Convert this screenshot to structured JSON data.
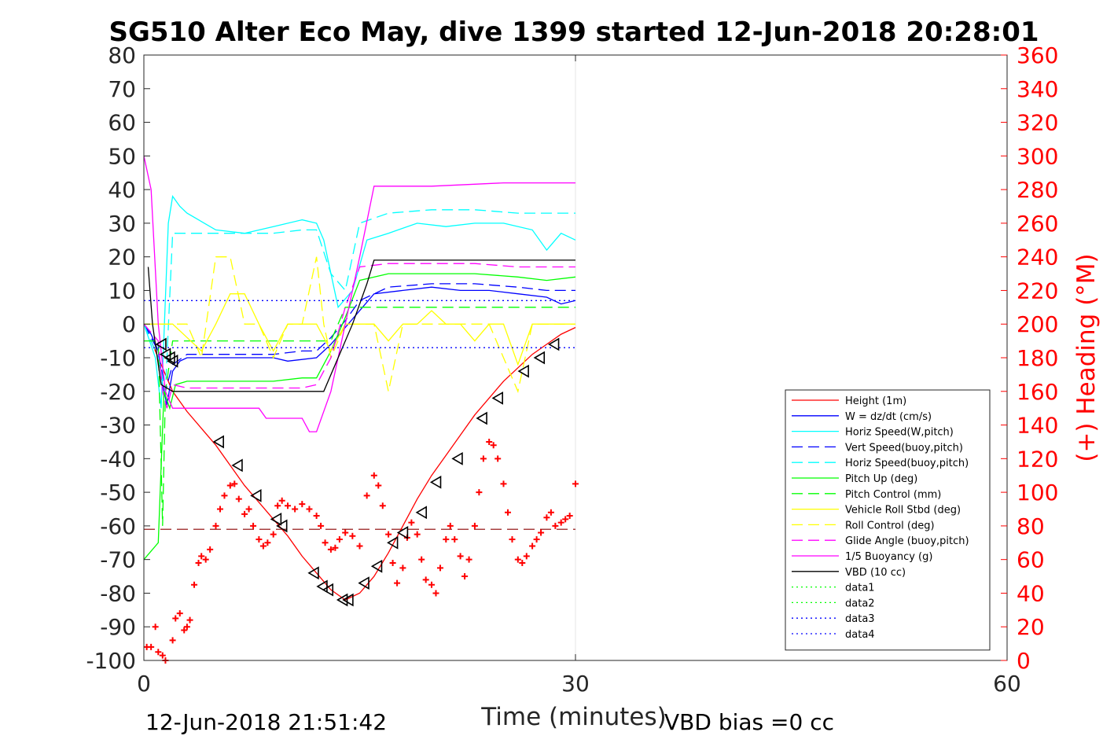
{
  "chart_data": {
    "type": "line",
    "title": "SG510 Alter Eco May, dive 1399 started 12-Jun-2018 20:28:01",
    "xlabel": "Time (minutes)",
    "ylabel": "",
    "ylabel_right": "(+) Heading (°M)",
    "xlim": [
      0,
      60
    ],
    "ylim": [
      -100,
      80
    ],
    "ylim_right": [
      0,
      360
    ],
    "x_ticks": [
      "0",
      "30",
      "60"
    ],
    "y_ticks": [
      "80",
      "70",
      "60",
      "50",
      "40",
      "30",
      "20",
      "10",
      "0",
      "-10",
      "-20",
      "-30",
      "-40",
      "-50",
      "-60",
      "-70",
      "-80",
      "-90",
      "-100"
    ],
    "y_ticks_right": [
      "360",
      "340",
      "320",
      "300",
      "280",
      "260",
      "240",
      "220",
      "200",
      "180",
      "160",
      "140",
      "120",
      "100",
      "80",
      "60",
      "40",
      "20",
      "0"
    ],
    "grid": "vertical lines at x ticks",
    "legend_position": "lower-right",
    "footer_left": "12-Jun-2018 21:51:42",
    "footer_right": "VBD bias =0 cc",
    "series": [
      {
        "name": "Height (1m)",
        "color": "#ff0000",
        "style": "solid",
        "x": [
          0.5,
          1,
          2,
          3,
          4,
          5,
          6,
          7,
          8,
          9,
          10,
          11,
          12,
          13,
          14,
          15,
          16,
          17,
          18,
          19,
          20,
          21,
          22,
          23,
          24,
          25,
          26,
          27,
          28,
          29,
          30
        ],
        "y": [
          -5,
          -10,
          -20,
          -26,
          -31,
          -36,
          -42,
          -48,
          -53,
          -58,
          -63,
          -69,
          -74,
          -79,
          -82,
          -80,
          -75,
          -68,
          -60,
          -52,
          -45,
          -39,
          -33,
          -27,
          -22,
          -17,
          -13,
          -9,
          -6,
          -3,
          -1
        ]
      },
      {
        "name": "W = dz/dt (cm/s)",
        "color": "#0000ff",
        "style": "solid",
        "x": [
          0,
          0.5,
          1,
          1.3,
          1.6,
          2,
          2.5,
          3,
          5,
          7,
          9,
          10,
          12,
          13,
          14,
          15,
          16,
          18,
          20,
          22,
          24,
          26,
          28,
          29,
          30
        ],
        "y": [
          0,
          -3,
          -8,
          -18,
          -24,
          -14,
          -11,
          -10,
          -10,
          -10,
          -10,
          -11,
          -10,
          -6,
          -1,
          4,
          9,
          10,
          11,
          10,
          10,
          9,
          8,
          6,
          7
        ]
      },
      {
        "name": "Horiz Speed(W,pitch)",
        "color": "#00ffff",
        "style": "solid",
        "x": [
          0,
          0.8,
          1.2,
          1.7,
          2,
          2.5,
          3,
          5,
          7,
          9,
          11,
          12,
          12.5,
          13.5,
          14.5,
          15.5,
          17,
          19,
          21,
          23,
          25,
          27,
          28,
          29,
          30
        ],
        "y": [
          0,
          -10,
          -25,
          30,
          38,
          35,
          33,
          28,
          27,
          29,
          31,
          30,
          25,
          5,
          10,
          25,
          27,
          30,
          29,
          30,
          30,
          28,
          22,
          27,
          25
        ]
      },
      {
        "name": "Vert Speed(buoy,pitch)",
        "color": "#0000ff",
        "style": "dash",
        "x": [
          0,
          1,
          1.5,
          2,
          3,
          5,
          7,
          9,
          11,
          12,
          13,
          14,
          15,
          17,
          20,
          23,
          26,
          28,
          30
        ],
        "y": [
          0,
          -8,
          -20,
          -12,
          -9,
          -9,
          -9,
          -9,
          -8,
          -8,
          -4,
          1,
          7,
          11,
          12,
          12,
          11,
          10,
          10
        ]
      },
      {
        "name": "Horiz Speed(buoy,pitch)",
        "color": "#00ffff",
        "style": "dash",
        "x": [
          0,
          1,
          1.5,
          2,
          3,
          5,
          7,
          9,
          11,
          12,
          13,
          14,
          15,
          17,
          20,
          23,
          26,
          28,
          30
        ],
        "y": [
          0,
          -10,
          -20,
          27,
          27,
          27,
          27,
          27,
          28,
          28,
          15,
          10,
          30,
          33,
          34,
          34,
          33,
          33,
          33
        ]
      },
      {
        "name": "Pitch Up (deg)",
        "color": "#00ff00",
        "style": "solid",
        "x": [
          0,
          1,
          1.4,
          1.8,
          2.2,
          3,
          5,
          7,
          9,
          11,
          12,
          13,
          14,
          15,
          17,
          20,
          23,
          26,
          28,
          30
        ],
        "y": [
          -70,
          -65,
          -20,
          -25,
          -18,
          -17,
          -17,
          -17,
          -17,
          -16,
          -16,
          -8,
          2,
          13,
          15,
          15,
          15,
          14,
          13,
          14
        ]
      },
      {
        "name": "Pitch Control (mm)",
        "color": "#00ff00",
        "style": "dash",
        "x": [
          0,
          1,
          1.3,
          1.5,
          2,
          5,
          9,
          12,
          13,
          14,
          15,
          20,
          25,
          30
        ],
        "y": [
          -5,
          -5,
          -60,
          -20,
          -5,
          -5,
          -5,
          -5,
          -5,
          5,
          5,
          5,
          5,
          5
        ]
      },
      {
        "name": "Vehicle Roll Stbd (deg)",
        "color": "#ffff00",
        "style": "solid",
        "x": [
          0,
          2,
          4,
          5,
          6,
          7,
          8,
          9,
          10,
          11,
          12,
          13,
          14,
          15,
          16,
          17,
          18,
          19,
          20,
          21,
          22,
          23,
          24,
          25,
          26,
          27,
          28,
          29,
          30
        ],
        "y": [
          0,
          0,
          -8,
          0,
          9,
          9,
          0,
          -8,
          0,
          0,
          0,
          -8,
          0,
          0,
          0,
          -5,
          0,
          0,
          4,
          0,
          0,
          -5,
          0,
          0,
          -12,
          0,
          0,
          0,
          0
        ]
      },
      {
        "name": "Roll Control (deg)",
        "color": "#ffff00",
        "style": "dash",
        "x": [
          0,
          3,
          4,
          5,
          6,
          7,
          8,
          9,
          10,
          11,
          12,
          12.5,
          13,
          14,
          16,
          17,
          18,
          20,
          22,
          24,
          25,
          26,
          27,
          28,
          29,
          30
        ],
        "y": [
          0,
          0,
          -10,
          20,
          20,
          0,
          0,
          -10,
          0,
          0,
          20,
          0,
          -10,
          0,
          0,
          -20,
          0,
          0,
          0,
          0,
          -10,
          -20,
          0,
          0,
          0,
          0
        ]
      },
      {
        "name": "Glide Angle (buoy,pitch)",
        "color": "#ff00ff",
        "style": "dash",
        "x": [
          0,
          1,
          1.3,
          1.6,
          2,
          3,
          5,
          7,
          9,
          11,
          12,
          13,
          14,
          15,
          17,
          20,
          23,
          26,
          28,
          30
        ],
        "y": [
          0,
          -5,
          -20,
          -25,
          -18,
          -19,
          -19,
          -19,
          -19,
          -19,
          -18,
          -10,
          5,
          17,
          18,
          18,
          18,
          17,
          17,
          17
        ]
      },
      {
        "name": "1/5 Buoyancy (g)",
        "color": "#ff00ff",
        "style": "solid",
        "x": [
          0,
          0.5,
          1,
          1.5,
          2,
          5,
          8,
          8.5,
          11,
          11.5,
          12,
          13,
          14,
          15,
          16,
          20,
          25,
          30
        ],
        "y": [
          50,
          40,
          0,
          -20,
          -25,
          -25,
          -25,
          -28,
          -28,
          -32,
          -32,
          -20,
          0,
          20,
          41,
          41,
          42,
          42
        ]
      },
      {
        "name": "VBD (10 cc)",
        "color": "#000000",
        "style": "solid",
        "x": [
          0.3,
          0.6,
          1.2,
          2,
          5,
          8,
          12,
          12.5,
          13.5,
          14.5,
          15.5,
          16,
          20,
          25,
          30
        ],
        "y": [
          17,
          0,
          -18,
          -20,
          -20,
          -20,
          -20,
          -20,
          -10,
          0,
          12,
          19,
          19,
          19,
          19
        ]
      },
      {
        "name": "data1",
        "color": "#00ff00",
        "style": "dot",
        "x": [],
        "y": []
      },
      {
        "name": "data2",
        "color": "#00ff00",
        "style": "dot",
        "x": [],
        "y": []
      },
      {
        "name": "data3",
        "color": "#0000ff",
        "style": "dot",
        "x": [
          0,
          30
        ],
        "y": [
          7,
          7
        ]
      },
      {
        "name": "data4",
        "color": "#0000ff",
        "style": "dot",
        "x": [
          0,
          30
        ],
        "y": [
          -7,
          -7
        ]
      }
    ],
    "reference_lines": [
      {
        "color": "#8b0000",
        "style": "dash",
        "x": [
          0,
          30
        ],
        "y": [
          -61,
          -61
        ]
      }
    ],
    "heading_points": {
      "color": "#ff0000",
      "marker": "+",
      "x": [
        0.2,
        0.5,
        0.8,
        1.0,
        1.3,
        1.5,
        2.0,
        2.2,
        2.5,
        2.8,
        3.0,
        3.2,
        3.5,
        3.8,
        4.0,
        4.3,
        4.6,
        5.0,
        5.3,
        5.6,
        6.0,
        6.3,
        6.6,
        7.0,
        7.3,
        7.6,
        8.0,
        8.3,
        8.6,
        9.0,
        9.3,
        9.6,
        10.0,
        10.5,
        11.0,
        11.5,
        12.0,
        12.3,
        12.6,
        13.0,
        13.3,
        13.6,
        14.0,
        14.5,
        15.0,
        15.5,
        16.0,
        16.3,
        16.6,
        17.0,
        17.3,
        17.6,
        18.0,
        18.3,
        18.6,
        19.0,
        19.3,
        19.6,
        20.0,
        20.3,
        20.6,
        21.0,
        21.3,
        21.6,
        22.0,
        22.3,
        22.6,
        23.0,
        23.3,
        23.6,
        24.0,
        24.3,
        24.6,
        25.0,
        25.3,
        25.6,
        26.0,
        26.3,
        26.6,
        27.0,
        27.3,
        27.6,
        28.0,
        28.3,
        28.6,
        29.0,
        29.3,
        29.6,
        30.0
      ],
      "y": [
        8,
        8,
        20,
        5,
        3,
        0,
        12,
        25,
        28,
        18,
        20,
        24,
        45,
        58,
        62,
        60,
        66,
        80,
        90,
        98,
        104,
        105,
        96,
        87,
        90,
        80,
        72,
        68,
        70,
        75,
        92,
        95,
        92,
        90,
        93,
        90,
        86,
        80,
        70,
        66,
        67,
        72,
        76,
        74,
        68,
        98,
        110,
        104,
        92,
        75,
        58,
        46,
        55,
        73,
        82,
        75,
        60,
        48,
        45,
        40,
        55,
        72,
        80,
        72,
        62,
        50,
        60,
        80,
        100,
        120,
        130,
        128,
        120,
        105,
        88,
        72,
        60,
        58,
        62,
        68,
        72,
        76,
        85,
        88,
        80,
        82,
        84,
        86,
        105
      ]
    },
    "triangle_markers": {
      "color": "#000000",
      "x": [
        1.2,
        1.5,
        1.8,
        2.0,
        5.2,
        6.5,
        7.8,
        9.2,
        9.6,
        11.8,
        12.4,
        12.8,
        13.8,
        14.2,
        15.3,
        16.2,
        17.3,
        18.0,
        19.3,
        20.3,
        21.8,
        23.5,
        24.6,
        26.4,
        27.5,
        28.5
      ],
      "y": [
        -6,
        -9,
        -10,
        -11,
        -35,
        -42,
        -51,
        -58,
        -60,
        -74,
        -78,
        -79,
        -82,
        -82,
        -77,
        -72,
        -65,
        -62,
        -56,
        -47,
        -40,
        -28,
        -22,
        -14,
        -10,
        -6
      ]
    }
  }
}
